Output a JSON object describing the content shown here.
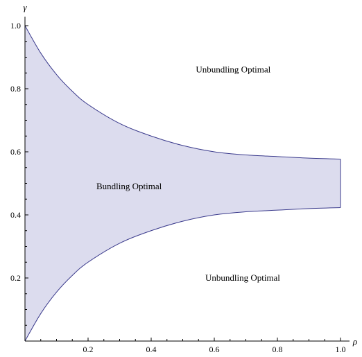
{
  "chart_data": {
    "type": "area",
    "title": "",
    "xlabel": "ρ",
    "ylabel": "γ",
    "xlim": [
      0,
      1
    ],
    "ylim": [
      0,
      1
    ],
    "grid": false,
    "x_ticks": [
      {
        "value": 0.2,
        "label": "0.2"
      },
      {
        "value": 0.4,
        "label": "0.4"
      },
      {
        "value": 0.6,
        "label": "0.6"
      },
      {
        "value": 0.8,
        "label": "0.8"
      },
      {
        "value": 1.0,
        "label": "1.0"
      }
    ],
    "y_ticks": [
      {
        "value": 0.2,
        "label": "0.2"
      },
      {
        "value": 0.4,
        "label": "0.4"
      },
      {
        "value": 0.6,
        "label": "0.6"
      },
      {
        "value": 0.8,
        "label": "0.8"
      },
      {
        "value": 1.0,
        "label": "1.0"
      }
    ],
    "colors": {
      "fill": "#dcdcee",
      "stroke": "#3a3a8c",
      "axis": "#000000"
    },
    "series": [
      {
        "x": [
          0,
          0.05,
          0.1,
          0.15,
          0.2,
          0.3,
          0.4,
          0.5,
          0.6,
          0.7,
          0.8,
          0.9,
          1.0
        ],
        "upper": [
          1.0,
          0.913,
          0.845,
          0.792,
          0.75,
          0.69,
          0.65,
          0.62,
          0.6,
          0.59,
          0.585,
          0.58,
          0.577
        ],
        "lower": [
          0.0,
          0.087,
          0.155,
          0.208,
          0.25,
          0.31,
          0.35,
          0.38,
          0.4,
          0.41,
          0.415,
          0.42,
          0.423
        ]
      }
    ],
    "annotations": [
      {
        "text": "Unbundling Optimal",
        "x": 0.66,
        "y": 0.86
      },
      {
        "text": "Bundling Optimal",
        "x": 0.33,
        "y": 0.49
      },
      {
        "text": "Unbundling Optimal",
        "x": 0.69,
        "y": 0.2
      }
    ]
  }
}
